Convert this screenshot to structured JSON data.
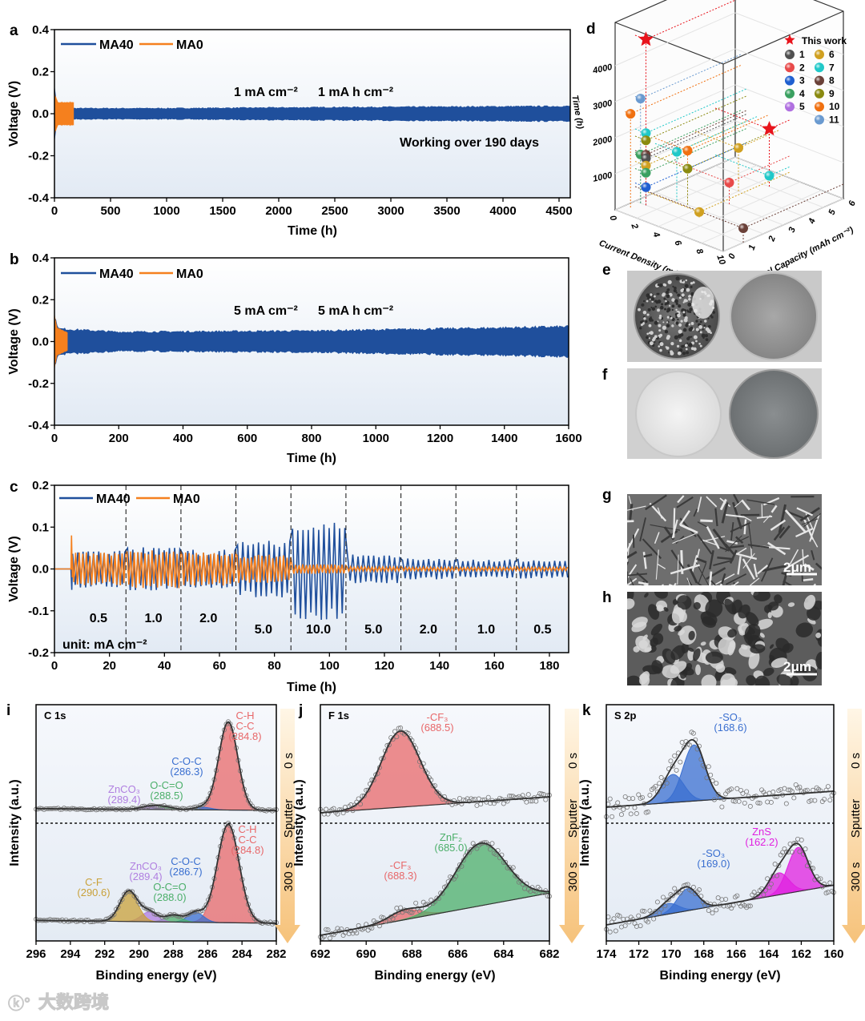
{
  "panels": {
    "a": "a",
    "b": "b",
    "c": "c",
    "d": "d",
    "e": "e",
    "f": "f",
    "g": "g",
    "h": "h",
    "i": "i",
    "j": "j",
    "k": "k"
  },
  "watermark": "大数跨境",
  "images": {
    "scale_bar_g": "2μm",
    "scale_bar_h": "2μm"
  },
  "colors": {
    "ma40": "#1f4f9c",
    "ma0": "#f5801e"
  },
  "chart_data": [
    {
      "id": "a",
      "type": "line",
      "title": "",
      "xlabel": "Time (h)",
      "ylabel": "Voltage (V)",
      "xlim": [
        0,
        4600
      ],
      "ylim": [
        -0.4,
        0.4
      ],
      "xticks": [
        0,
        500,
        1000,
        1500,
        2000,
        2500,
        3000,
        3500,
        4000,
        4500
      ],
      "xtick_labels": [
        "0",
        "500",
        "1000",
        "1500",
        "2000",
        "2500",
        "3000",
        "3500",
        "4000",
        "4500"
      ],
      "yticks": [
        -0.4,
        -0.2,
        0.0,
        0.2,
        0.4
      ],
      "ytick_labels": [
        "-0.4",
        "-0.2",
        "0.0",
        "0.2",
        "0.4"
      ],
      "legend": [
        "MA40",
        "MA0"
      ],
      "legend_position": "top-left",
      "annotations": [
        "1 mA cm⁻²",
        "1 mA h cm⁻²",
        "Working over 190 days"
      ],
      "series": [
        {
          "name": "MA40",
          "envelope": [
            [
              0,
              0.14
            ],
            [
              15,
              0.05
            ],
            [
              100,
              0.025
            ],
            [
              1000,
              0.025
            ],
            [
              2500,
              0.03
            ],
            [
              4600,
              0.035
            ]
          ]
        },
        {
          "name": "MA0",
          "envelope": [
            [
              0,
              0.09
            ],
            [
              30,
              0.05
            ],
            [
              170,
              0.05
            ]
          ]
        }
      ]
    },
    {
      "id": "b",
      "type": "line",
      "title": "",
      "xlabel": "Time (h)",
      "ylabel": "Voltage (V)",
      "xlim": [
        0,
        1600
      ],
      "ylim": [
        -0.4,
        0.4
      ],
      "xticks": [
        0,
        200,
        400,
        600,
        800,
        1000,
        1200,
        1400,
        1600
      ],
      "xtick_labels": [
        "0",
        "200",
        "400",
        "600",
        "800",
        "1000",
        "1200",
        "1400",
        "1600"
      ],
      "yticks": [
        -0.4,
        -0.2,
        0.0,
        0.2,
        0.4
      ],
      "ytick_labels": [
        "-0.4",
        "-0.2",
        "0.0",
        "0.2",
        "0.4"
      ],
      "legend": [
        "MA40",
        "MA0"
      ],
      "legend_position": "top-left",
      "annotations": [
        "5 mA cm⁻²",
        "5 mA h cm⁻²"
      ],
      "series": [
        {
          "name": "MA40",
          "envelope": [
            [
              0,
              0.11
            ],
            [
              15,
              0.06
            ],
            [
              200,
              0.045
            ],
            [
              800,
              0.05
            ],
            [
              1600,
              0.07
            ]
          ]
        },
        {
          "name": "MA0",
          "envelope": [
            [
              0,
              0.12
            ],
            [
              8,
              0.06
            ],
            [
              40,
              0.04
            ]
          ]
        }
      ]
    },
    {
      "id": "c",
      "type": "line",
      "title": "",
      "xlabel": "Time (h)",
      "ylabel": "Voltage (V)",
      "xlim": [
        0,
        187
      ],
      "ylim": [
        -0.2,
        0.2
      ],
      "xticks": [
        0,
        20,
        40,
        60,
        80,
        100,
        120,
        140,
        160,
        180
      ],
      "xtick_labels": [
        "0",
        "20",
        "40",
        "60",
        "80",
        "100",
        "120",
        "140",
        "160",
        "180"
      ],
      "yticks": [
        -0.2,
        -0.1,
        0.0,
        0.1,
        0.2
      ],
      "ytick_labels": [
        "-0.2",
        "-0.1",
        "0.0",
        "0.1",
        "0.2"
      ],
      "legend": [
        "MA40",
        "MA0"
      ],
      "legend_position": "top-left",
      "unit_label": "unit: mA cm⁻²",
      "rate_steps": [
        {
          "label": "0.5",
          "start": 6,
          "end": 26,
          "ma40": 0.04,
          "ma0": 0.035
        },
        {
          "label": "1.0",
          "start": 26,
          "end": 46,
          "ma40": 0.045,
          "ma0": 0.04
        },
        {
          "label": "2.0",
          "start": 46,
          "end": 66,
          "ma40": 0.04,
          "ma0": 0.035
        },
        {
          "label": "5.0",
          "start": 66,
          "end": 86,
          "ma40": 0.06,
          "ma0": 0.03
        },
        {
          "label": "10.0",
          "start": 86,
          "end": 106,
          "ma40": 0.1,
          "ma0": 0.01
        },
        {
          "label": "5.0",
          "start": 106,
          "end": 126,
          "ma40": 0.03,
          "ma0": 0.005
        },
        {
          "label": "2.0",
          "start": 126,
          "end": 146,
          "ma40": 0.022,
          "ma0": 0.004
        },
        {
          "label": "1.0",
          "start": 146,
          "end": 168,
          "ma40": 0.02,
          "ma0": 0.004
        },
        {
          "label": "0.5",
          "start": 168,
          "end": 187,
          "ma40": 0.02,
          "ma0": 0.004
        }
      ]
    },
    {
      "id": "d",
      "type": "scatter3d",
      "xlabel": "Current Density (mA cm⁻²)",
      "ylabel": "Areal Capacity (mAh cm⁻²)",
      "zlabel": "Time (h)",
      "xticks": [
        0,
        2,
        4,
        6,
        8,
        10
      ],
      "xtick_labels": [
        "0",
        "2",
        "4",
        "6",
        "8",
        "10"
      ],
      "yticks": [
        0,
        1,
        2,
        3,
        4,
        5,
        6
      ],
      "ytick_labels": [
        "0",
        "1",
        "2",
        "3",
        "4",
        "5",
        "6"
      ],
      "zticks": [
        1000,
        2000,
        3000,
        4000
      ],
      "ztick_labels": [
        "1000",
        "2000",
        "3000",
        "4000"
      ],
      "legend": [
        {
          "label": "This work",
          "color": "#e8141c",
          "marker": "star"
        },
        {
          "label": "1",
          "color": "#505050"
        },
        {
          "label": "2",
          "color": "#e84a4a"
        },
        {
          "label": "3",
          "color": "#1f5fd0"
        },
        {
          "label": "4",
          "color": "#3aa060"
        },
        {
          "label": "5",
          "color": "#b070e0"
        },
        {
          "label": "6",
          "color": "#d0a020"
        },
        {
          "label": "7",
          "color": "#20c8c8"
        },
        {
          "label": "8",
          "color": "#6a4038"
        },
        {
          "label": "9",
          "color": "#8a8a10"
        },
        {
          "label": "10",
          "color": "#f07010"
        },
        {
          "label": "11",
          "color": "#6a9ad0"
        }
      ],
      "this_work": [
        {
          "current_density": 1,
          "areal_capacity": 1,
          "time_h": 4600
        },
        {
          "current_density": 5,
          "areal_capacity": 5,
          "time_h": 1600
        }
      ],
      "points": [
        {
          "ref": "10",
          "current_density": 0.5,
          "areal_capacity": 0.5,
          "time_h": 2600
        },
        {
          "ref": "11",
          "current_density": 0.5,
          "areal_capacity": 1,
          "time_h": 2900
        },
        {
          "ref": "4",
          "current_density": 0.5,
          "areal_capacity": 1,
          "time_h": 1350
        },
        {
          "ref": "7",
          "current_density": 1,
          "areal_capacity": 1,
          "time_h": 2000
        },
        {
          "ref": "9",
          "current_density": 1,
          "areal_capacity": 1,
          "time_h": 1800
        },
        {
          "ref": "8",
          "current_density": 1,
          "areal_capacity": 1,
          "time_h": 1400
        },
        {
          "ref": "1",
          "current_density": 1,
          "areal_capacity": 1,
          "time_h": 1300
        },
        {
          "ref": "6",
          "current_density": 1,
          "areal_capacity": 1,
          "time_h": 1100
        },
        {
          "ref": "4",
          "current_density": 1,
          "areal_capacity": 1,
          "time_h": 900
        },
        {
          "ref": "3",
          "current_density": 1,
          "areal_capacity": 1,
          "time_h": 500
        },
        {
          "ref": "7",
          "current_density": 2,
          "areal_capacity": 2,
          "time_h": 1350
        },
        {
          "ref": "10",
          "current_density": 3,
          "areal_capacity": 2,
          "time_h": 1500
        },
        {
          "ref": "9",
          "current_density": 3,
          "areal_capacity": 2,
          "time_h": 1000
        },
        {
          "ref": "2",
          "current_density": 5,
          "areal_capacity": 3,
          "time_h": 600
        },
        {
          "ref": "6",
          "current_density": 5,
          "areal_capacity": 1.5,
          "time_h": 150
        },
        {
          "ref": "8",
          "current_density": 10,
          "areal_capacity": 1,
          "time_h": 400
        },
        {
          "ref": "6",
          "current_density": 4,
          "areal_capacity": 4,
          "time_h": 1200
        },
        {
          "ref": "7",
          "current_density": 5,
          "areal_capacity": 5,
          "time_h": 300
        }
      ]
    },
    {
      "id": "i",
      "type": "xps",
      "title": "C 1s",
      "xlabel": "Binding energy (eV)",
      "ylabel": "Intensity (a.u.)",
      "xlim": [
        296,
        282
      ],
      "xticks": [
        296,
        294,
        292,
        290,
        288,
        286,
        284,
        282
      ],
      "xtick_labels": [
        "296",
        "294",
        "292",
        "290",
        "288",
        "286",
        "284",
        "282"
      ],
      "sputter_labels": [
        "0 s",
        "Sputter",
        "300 s"
      ],
      "spectra": [
        {
          "time": "0 s",
          "baseline": [
            0.02,
            0.0
          ],
          "noise": 0.01,
          "peaks": [
            {
              "label_lines": [
                "C-H",
                "C-C",
                "(284.8)"
              ],
              "center": 284.8,
              "fwhm": 1.3,
              "amp": 1.0,
              "color": "#e8686a"
            },
            {
              "label_lines": [
                "C-O-C",
                "(286.3)"
              ],
              "center": 286.3,
              "fwhm": 1.2,
              "amp": 0.03,
              "color": "#3a6fd0"
            },
            {
              "label_lines": [
                "O-C=O",
                "(288.5)"
              ],
              "center": 288.5,
              "fwhm": 1.2,
              "amp": 0.03,
              "color": "#4caf6a"
            },
            {
              "label_lines": [
                "ZnCO₃",
                "(289.4)"
              ],
              "center": 289.4,
              "fwhm": 1.2,
              "amp": 0.035,
              "color": "#b07fe0"
            }
          ]
        },
        {
          "time": "300 s",
          "baseline": [
            0.03,
            0.0
          ],
          "noise": 0.012,
          "peaks": [
            {
              "label_lines": [
                "C-H",
                "C-C",
                "(284.8)"
              ],
              "center": 284.8,
              "fwhm": 1.5,
              "amp": 1.0,
              "color": "#e8686a"
            },
            {
              "label_lines": [
                "C-O-C",
                "(286.7)"
              ],
              "center": 286.7,
              "fwhm": 1.1,
              "amp": 0.1,
              "color": "#3a6fd0"
            },
            {
              "label_lines": [
                "O-C=O",
                "(288.0)"
              ],
              "center": 288.0,
              "fwhm": 1.1,
              "amp": 0.07,
              "color": "#4caf6a"
            },
            {
              "label_lines": [
                "ZnCO₃",
                "(289.4)"
              ],
              "center": 289.4,
              "fwhm": 1.1,
              "amp": 0.1,
              "color": "#b07fe0"
            },
            {
              "label_lines": [
                "C-F",
                "(290.6)"
              ],
              "center": 290.6,
              "fwhm": 1.2,
              "amp": 0.31,
              "color": "#c9a13a"
            }
          ]
        }
      ]
    },
    {
      "id": "j",
      "type": "xps",
      "title": "F 1s",
      "xlabel": "Binding energy (eV)",
      "ylabel": "Intensity (a.u.)",
      "xlim": [
        692,
        682
      ],
      "xticks": [
        692,
        690,
        688,
        686,
        684,
        682
      ],
      "xtick_labels": [
        "692",
        "690",
        "688",
        "686",
        "684",
        "682"
      ],
      "sputter_labels": [
        "0 s",
        "Sputter",
        "300 s"
      ],
      "spectra": [
        {
          "time": "0 s",
          "baseline": [
            0.0,
            0.2
          ],
          "noise": 0.05,
          "peaks": [
            {
              "label_lines": [
                "-CF₃",
                "(688.5)"
              ],
              "center": 688.5,
              "fwhm": 2.0,
              "amp": 0.95,
              "color": "#e8686a"
            }
          ]
        },
        {
          "time": "300 s",
          "baseline": [
            0.0,
            0.44
          ],
          "noise": 0.05,
          "peaks": [
            {
              "label_lines": [
                "-CF₃",
                "(688.3)"
              ],
              "center": 688.3,
              "fwhm": 1.6,
              "amp": 0.1,
              "color": "#e8686a"
            },
            {
              "label_lines": [
                "ZnF₂",
                "(685.0)"
              ],
              "center": 685.0,
              "fwhm": 2.6,
              "amp": 0.65,
              "color": "#4caf6a"
            }
          ]
        }
      ]
    },
    {
      "id": "k",
      "type": "xps",
      "title": "S 2p",
      "xlabel": "Binding energy (eV)",
      "ylabel": "Intensity (a.u.)",
      "xlim": [
        174,
        160
      ],
      "xticks": [
        174,
        172,
        170,
        168,
        166,
        164,
        162,
        160
      ],
      "xtick_labels": [
        "174",
        "172",
        "170",
        "168",
        "166",
        "164",
        "162",
        "160"
      ],
      "sputter_labels": [
        "0 s",
        "Sputter",
        "300 s"
      ],
      "spectra": [
        {
          "time": "0 s",
          "baseline": [
            0.0,
            0.2
          ],
          "noise": 0.13,
          "peaks": [
            {
              "label_lines": [
                "-SO₃",
                "(168.6)"
              ],
              "center": 168.6,
              "fwhm": 1.6,
              "amp": 0.7,
              "color": "#3a6fd0"
            },
            {
              "label_lines": [],
              "center": 169.9,
              "fwhm": 1.6,
              "amp": 0.35,
              "color": "#3a6fd0"
            }
          ]
        },
        {
          "time": "300 s",
          "baseline": [
            0.0,
            0.45
          ],
          "noise": 0.09,
          "peaks": [
            {
              "label_lines": [
                "-SO₃",
                "(169.0)"
              ],
              "center": 169.0,
              "fwhm": 1.5,
              "amp": 0.25,
              "color": "#3a6fd0"
            },
            {
              "label_lines": [],
              "center": 170.2,
              "fwhm": 1.5,
              "amp": 0.12,
              "color": "#3a6fd0"
            },
            {
              "label_lines": [
                "ZnS",
                "(162.2)"
              ],
              "center": 162.2,
              "fwhm": 1.5,
              "amp": 0.5,
              "color": "#e020e0"
            },
            {
              "label_lines": [],
              "center": 163.4,
              "fwhm": 1.5,
              "amp": 0.25,
              "color": "#e020e0"
            }
          ]
        }
      ]
    }
  ]
}
